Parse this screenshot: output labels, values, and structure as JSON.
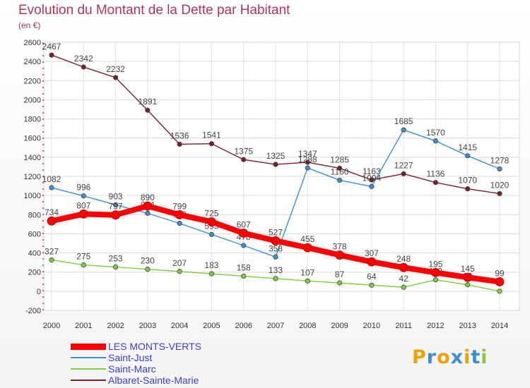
{
  "title": "Evolution du Montant de la Dette par Habitant",
  "subtitle": "(en €)",
  "logo": {
    "letters": [
      "P",
      "r",
      "o",
      "x",
      "i",
      "t",
      "i"
    ],
    "colors": [
      "#f0a000",
      "#3b8fd6",
      "#f0a000",
      "#3b8fd6",
      "#f0a000",
      "#3b8fd6",
      "#8cc63f"
    ]
  },
  "chart_data": {
    "type": "line",
    "categories": [
      "2000",
      "2001",
      "2002",
      "2003",
      "2004",
      "2005",
      "2006",
      "2007",
      "2008",
      "2009",
      "2010",
      "2011",
      "2012",
      "2013",
      "2014"
    ],
    "ylim": [
      -200,
      2600
    ],
    "yticks": [
      "-200",
      "0",
      "200",
      "400",
      "600",
      "800",
      "1000",
      "1200",
      "1400",
      "1600",
      "1800",
      "2000",
      "2200",
      "2400",
      "2600"
    ],
    "grid": true,
    "legend_position": "bottom-left",
    "series": [
      {
        "name": "Albaret-Sainte-Marie",
        "color": "#7a1f2c",
        "values": [
          2467,
          2342,
          2232,
          1891,
          1536,
          1541,
          1375,
          1325,
          1347,
          1285,
          1163,
          1227,
          1136,
          1070,
          1020
        ]
      },
      {
        "name": "Saint-Just",
        "color": "#3b8fd6",
        "values": [
          1082,
          996,
          903,
          814,
          709,
          593,
          478,
          358,
          1288,
          1160,
          1094,
          1685,
          1570,
          1415,
          1278
        ]
      },
      {
        "name": "Saint-Marc",
        "color": "#7ccf3c",
        "values": [
          327,
          275,
          253,
          230,
          207,
          183,
          158,
          133,
          107,
          87,
          64,
          42,
          119,
          68,
          0
        ]
      },
      {
        "name": "LES MONTS-VERTS",
        "color": "#ff0000",
        "values": [
          734,
          807,
          797,
          890,
          799,
          725,
          607,
          527,
          455,
          378,
          307,
          248,
          195,
          145,
          99
        ]
      }
    ],
    "data_labels": {
      "Albaret-Sainte-Marie": [
        "2467",
        "2342",
        "2232",
        "1891",
        "1536",
        "1541",
        "1375",
        "1325",
        "1347",
        "1285",
        "1163",
        "1227",
        "1136",
        "1070",
        "1020"
      ],
      "Saint-Just": [
        "1082",
        "996",
        "903",
        "814",
        "709",
        "593",
        "478",
        "358",
        "1288",
        "1160",
        "1094",
        "1685",
        "1570",
        "1415",
        "1278"
      ],
      "Saint-Marc": [
        "327",
        "275",
        "253",
        "230",
        "207",
        "183",
        "158",
        "133",
        "107",
        "87",
        "64",
        "42",
        "119",
        "68",
        "0"
      ],
      "LES MONTS-VERTS": [
        "734",
        "807",
        "797",
        "890",
        "799",
        "725",
        "607",
        "527",
        "455",
        "378",
        "307",
        "248",
        "195",
        "145",
        "99"
      ]
    }
  },
  "legend": [
    {
      "label": "LES MONTS-VERTS",
      "color": "#ff0000",
      "thick": true
    },
    {
      "label": "Saint-Just",
      "color": "#3b8fd6",
      "thick": false
    },
    {
      "label": "Saint-Marc",
      "color": "#7ccf3c",
      "thick": false
    },
    {
      "label": "Albaret-Sainte-Marie",
      "color": "#7a1f2c",
      "thick": false
    }
  ]
}
